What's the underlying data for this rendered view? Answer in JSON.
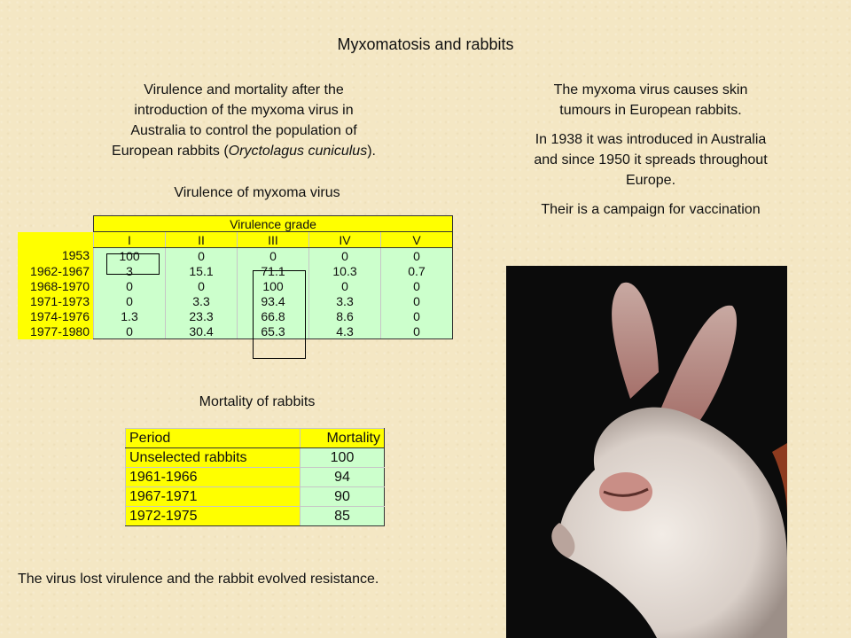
{
  "title": "Myxomatosis and rabbits",
  "intro": {
    "line1": "Virulence and mortality after the",
    "line2": "introduction of the myxoma virus in",
    "line3": "Australia to control the population of",
    "line4_pre": "European rabbits (",
    "line4_italic": "Oryctolagus cuniculus",
    "line4_post": ")."
  },
  "right_text": {
    "p1_l1": "The myxoma virus causes skin",
    "p1_l2": "tumours in European rabbits.",
    "p2_l1": "In 1938 it was introduced in Australia",
    "p2_l2": "and since 1950 it spreads throughout",
    "p2_l3": "Europe.",
    "p3": "Their is a campaign for vaccination"
  },
  "virulence_caption": "Virulence of myxoma virus",
  "virulence_table": {
    "header": "Virulence grade",
    "grades": [
      "I",
      "II",
      "III",
      "IV",
      "V"
    ],
    "rows": [
      {
        "period": "1953",
        "values": [
          "100",
          "0",
          "0",
          "0",
          "0"
        ]
      },
      {
        "period": "1962-1967",
        "values": [
          "3",
          "15.1",
          "71.1",
          "10.3",
          "0.7"
        ]
      },
      {
        "period": "1968-1970",
        "values": [
          "0",
          "0",
          "100",
          "0",
          "0"
        ]
      },
      {
        "period": "1971-1973",
        "values": [
          "0",
          "3.3",
          "93.4",
          "3.3",
          "0"
        ]
      },
      {
        "period": "1974-1976",
        "values": [
          "1.3",
          "23.3",
          "66.8",
          "8.6",
          "0"
        ]
      },
      {
        "period": "1977-1980",
        "values": [
          "0",
          "30.4",
          "65.3",
          "4.3",
          "0"
        ]
      }
    ]
  },
  "mortality_caption": "Mortality of rabbits",
  "mortality_table": {
    "col_period": "Period",
    "col_mortality": "Mortality",
    "rows": [
      {
        "period": "Unselected rabbits",
        "mortality": "100"
      },
      {
        "period": "1961-1966",
        "mortality": "94"
      },
      {
        "period": "1967-1971",
        "mortality": "90"
      },
      {
        "period": "1972-1975",
        "mortality": "85"
      }
    ]
  },
  "conclusion": "The virus lost virulence and the rabbit evolved resistance."
}
